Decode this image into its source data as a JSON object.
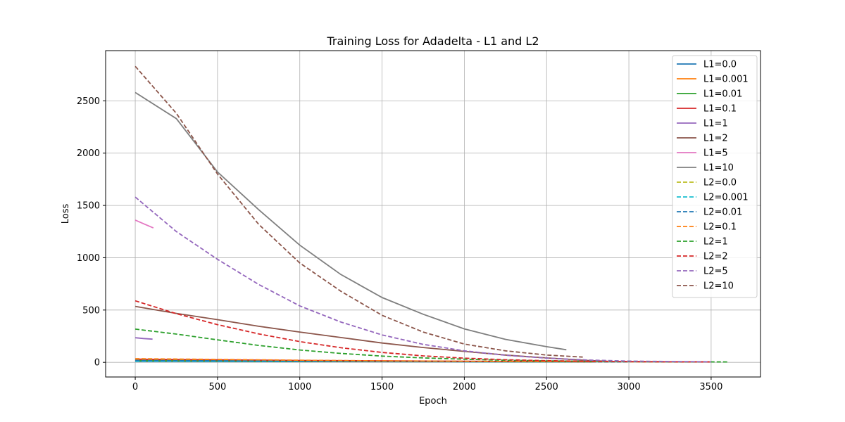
{
  "chart_data": {
    "type": "line",
    "title": "Training Loss for Adadelta - L1 and L2",
    "xlabel": "Epoch",
    "ylabel": "Loss",
    "xlim": [
      -180,
      3800
    ],
    "ylim": [
      -140,
      2980
    ],
    "xticks": [
      0,
      500,
      1000,
      1500,
      2000,
      2500,
      3000,
      3500
    ],
    "yticks": [
      0,
      500,
      1000,
      1500,
      2000,
      2500
    ],
    "grid": true,
    "legend_position": "top-right",
    "series": [
      {
        "name": "L1=0.0",
        "color": "#1f77b4",
        "dash": false,
        "points": [
          [
            0,
            10
          ],
          [
            1000,
            8
          ],
          [
            2000,
            6
          ],
          [
            2800,
            5
          ]
        ]
      },
      {
        "name": "L1=0.001",
        "color": "#ff7f0e",
        "dash": false,
        "points": [
          [
            0,
            25
          ],
          [
            1000,
            15
          ],
          [
            2000,
            8
          ],
          [
            2800,
            5
          ]
        ]
      },
      {
        "name": "L1=0.01",
        "color": "#2ca02c",
        "dash": false,
        "points": [
          [
            0,
            15
          ],
          [
            1000,
            10
          ],
          [
            2000,
            7
          ],
          [
            2800,
            5
          ]
        ]
      },
      {
        "name": "L1=0.1",
        "color": "#d62728",
        "dash": false,
        "points": [
          [
            0,
            30
          ],
          [
            1000,
            18
          ],
          [
            2000,
            10
          ],
          [
            2800,
            6
          ]
        ]
      },
      {
        "name": "L1=1",
        "color": "#9467bd",
        "dash": false,
        "points": [
          [
            0,
            235
          ],
          [
            50,
            228
          ],
          [
            105,
            222
          ]
        ]
      },
      {
        "name": "L1=2",
        "color": "#8c564b",
        "dash": false,
        "points": [
          [
            0,
            535
          ],
          [
            250,
            468
          ],
          [
            500,
            408
          ],
          [
            750,
            345
          ],
          [
            1000,
            290
          ],
          [
            1250,
            237
          ],
          [
            1500,
            185
          ],
          [
            1750,
            142
          ],
          [
            2000,
            105
          ],
          [
            2250,
            70
          ],
          [
            2500,
            42
          ],
          [
            2750,
            18
          ],
          [
            2870,
            10
          ]
        ]
      },
      {
        "name": "L1=5",
        "color": "#e377c2",
        "dash": false,
        "points": [
          [
            0,
            1360
          ],
          [
            55,
            1322
          ],
          [
            110,
            1285
          ]
        ]
      },
      {
        "name": "L1=10",
        "color": "#7f7f7f",
        "dash": false,
        "points": [
          [
            0,
            2580
          ],
          [
            250,
            2330
          ],
          [
            500,
            1820
          ],
          [
            750,
            1460
          ],
          [
            1000,
            1120
          ],
          [
            1250,
            840
          ],
          [
            1500,
            620
          ],
          [
            1750,
            460
          ],
          [
            2000,
            320
          ],
          [
            2250,
            220
          ],
          [
            2500,
            150
          ],
          [
            2620,
            120
          ]
        ]
      },
      {
        "name": "L2=0.0",
        "color": "#bcbd22",
        "dash": true,
        "points": [
          [
            0,
            20
          ],
          [
            1000,
            12
          ],
          [
            2000,
            7
          ],
          [
            3000,
            5
          ]
        ]
      },
      {
        "name": "L2=0.001",
        "color": "#17becf",
        "dash": true,
        "points": [
          [
            0,
            10
          ],
          [
            1000,
            8
          ],
          [
            2000,
            6
          ],
          [
            3000,
            4
          ]
        ]
      },
      {
        "name": "L2=0.01",
        "color": "#1f77b4",
        "dash": true,
        "points": [
          [
            0,
            18
          ],
          [
            1000,
            11
          ],
          [
            2000,
            7
          ],
          [
            3000,
            5
          ]
        ]
      },
      {
        "name": "L2=0.1",
        "color": "#ff7f0e",
        "dash": true,
        "points": [
          [
            0,
            35
          ],
          [
            500,
            28
          ],
          [
            1000,
            20
          ],
          [
            1500,
            14
          ],
          [
            2000,
            10
          ],
          [
            2500,
            7
          ],
          [
            3000,
            6
          ],
          [
            3500,
            5
          ]
        ]
      },
      {
        "name": "L2=1",
        "color": "#2ca02c",
        "dash": true,
        "points": [
          [
            0,
            318
          ],
          [
            250,
            270
          ],
          [
            500,
            215
          ],
          [
            750,
            162
          ],
          [
            1000,
            118
          ],
          [
            1250,
            85
          ],
          [
            1500,
            60
          ],
          [
            1750,
            42
          ],
          [
            2000,
            30
          ],
          [
            2250,
            20
          ],
          [
            2500,
            14
          ],
          [
            2750,
            10
          ],
          [
            3000,
            7
          ],
          [
            3300,
            5
          ],
          [
            3600,
            4
          ]
        ]
      },
      {
        "name": "L2=2",
        "color": "#d62728",
        "dash": true,
        "points": [
          [
            0,
            588
          ],
          [
            250,
            465
          ],
          [
            500,
            360
          ],
          [
            750,
            272
          ],
          [
            1000,
            198
          ],
          [
            1250,
            140
          ],
          [
            1500,
            95
          ],
          [
            1750,
            62
          ],
          [
            2000,
            40
          ],
          [
            2250,
            25
          ],
          [
            2500,
            16
          ],
          [
            2750,
            10
          ],
          [
            3000,
            7
          ],
          [
            3250,
            5
          ],
          [
            3500,
            4
          ]
        ]
      },
      {
        "name": "L2=5",
        "color": "#9467bd",
        "dash": true,
        "points": [
          [
            0,
            1580
          ],
          [
            250,
            1250
          ],
          [
            500,
            985
          ],
          [
            750,
            745
          ],
          [
            1000,
            540
          ],
          [
            1250,
            385
          ],
          [
            1500,
            262
          ],
          [
            1750,
            172
          ],
          [
            2000,
            110
          ],
          [
            2250,
            68
          ],
          [
            2500,
            40
          ],
          [
            2750,
            22
          ],
          [
            3000,
            12
          ],
          [
            3250,
            8
          ],
          [
            3500,
            5
          ]
        ]
      },
      {
        "name": "L2=10",
        "color": "#8c564b",
        "dash": true,
        "points": [
          [
            0,
            2830
          ],
          [
            250,
            2380
          ],
          [
            500,
            1800
          ],
          [
            750,
            1320
          ],
          [
            1000,
            950
          ],
          [
            1250,
            680
          ],
          [
            1500,
            450
          ],
          [
            1750,
            290
          ],
          [
            2000,
            175
          ],
          [
            2250,
            110
          ],
          [
            2500,
            70
          ],
          [
            2720,
            50
          ]
        ]
      }
    ]
  }
}
